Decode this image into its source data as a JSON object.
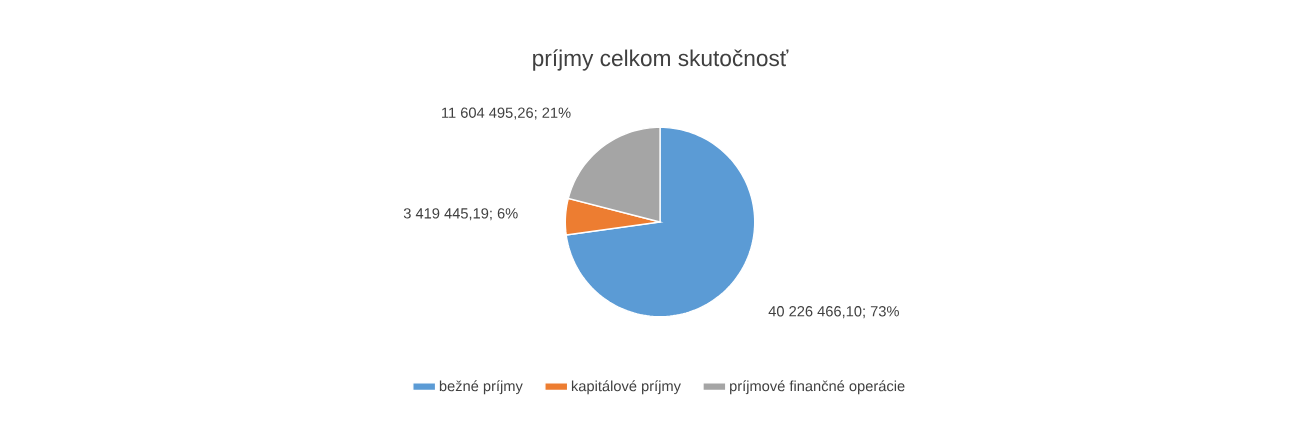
{
  "chart_data": {
    "type": "pie",
    "title": "príjmy celkom skutočnosť",
    "categories": [
      "bežné príjmy",
      "kapitálové príjmy",
      "príjmové finančné operácie"
    ],
    "values": [
      40226466.1,
      3419445.19,
      11604495.26
    ],
    "colors": [
      "#5b9bd5",
      "#ed7d31",
      "#a5a5a5"
    ],
    "value_labels": [
      "40 226 466,10; 73%",
      "3 419 445,19; 6%",
      "11 604 495,26; 21%"
    ],
    "legend": "bottom"
  }
}
